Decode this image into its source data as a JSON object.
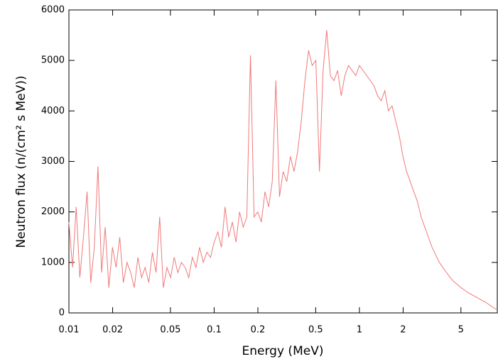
{
  "chart_data": {
    "type": "line",
    "xlabel": "Energy (MeV)",
    "ylabel": "Neutron flux (n/(cm² s MeV))",
    "xscale": "log",
    "xlim": [
      0.01,
      8.9
    ],
    "ylim": [
      0,
      6000
    ],
    "xticks": [
      0.01,
      0.02,
      0.05,
      0.1,
      0.2,
      0.5,
      1,
      2,
      5
    ],
    "yticks": [
      0,
      1000,
      2000,
      3000,
      4000,
      5000,
      6000
    ],
    "grid": false,
    "x": [
      0.01,
      0.01059,
      0.01122,
      0.01189,
      0.01259,
      0.01334,
      0.01413,
      0.01496,
      0.01585,
      0.01679,
      0.01778,
      0.01884,
      0.01995,
      0.02113,
      0.02239,
      0.02371,
      0.02512,
      0.02661,
      0.02818,
      0.02985,
      0.03162,
      0.0335,
      0.03548,
      0.03758,
      0.03981,
      0.04217,
      0.04467,
      0.04732,
      0.05012,
      0.05309,
      0.05623,
      0.05957,
      0.0631,
      0.06683,
      0.07079,
      0.07499,
      0.07943,
      0.08414,
      0.08913,
      0.09441,
      0.1,
      0.1059,
      0.1122,
      0.1189,
      0.1259,
      0.1334,
      0.1413,
      0.1496,
      0.1585,
      0.1679,
      0.1778,
      0.1884,
      0.1995,
      0.2113,
      0.2239,
      0.2371,
      0.2512,
      0.2661,
      0.2818,
      0.2985,
      0.3162,
      0.335,
      0.3548,
      0.3758,
      0.3981,
      0.4217,
      0.4467,
      0.4732,
      0.5012,
      0.5309,
      0.5623,
      0.5957,
      0.631,
      0.6683,
      0.7079,
      0.7499,
      0.7943,
      0.8414,
      0.8913,
      0.9441,
      1,
      1.059,
      1.122,
      1.189,
      1.259,
      1.334,
      1.413,
      1.496,
      1.585,
      1.679,
      1.778,
      1.884,
      1.995,
      2.113,
      2.239,
      2.371,
      2.512,
      2.661,
      2.818,
      2.985,
      3.162,
      3.35,
      3.548,
      3.758,
      3.981,
      4.217,
      4.467,
      4.732,
      5.012,
      5.309,
      5.623,
      5.957,
      6.31,
      6.683,
      7.079,
      7.499,
      7.943,
      8.414,
      8.913
    ],
    "series": [
      {
        "color": "#f07878",
        "values": [
          1800,
          900,
          2100,
          700,
          1500,
          2400,
          600,
          1300,
          2900,
          800,
          1700,
          500,
          1300,
          900,
          1500,
          600,
          1000,
          800,
          500,
          1100,
          700,
          900,
          600,
          1200,
          800,
          1900,
          500,
          900,
          700,
          1100,
          800,
          1000,
          900,
          700,
          1100,
          900,
          1300,
          1000,
          1200,
          1100,
          1400,
          1600,
          1300,
          2100,
          1500,
          1800,
          1400,
          2000,
          1700,
          1900,
          5100,
          1900,
          2000,
          1800,
          2400,
          2100,
          2600,
          4600,
          2300,
          2800,
          2600,
          3100,
          2800,
          3200,
          3800,
          4600,
          5200,
          4900,
          5000,
          2800,
          4800,
          5600,
          4700,
          4600,
          4800,
          4300,
          4700,
          4900,
          4800,
          4700,
          4900,
          4800,
          4700,
          4600,
          4500,
          4300,
          4200,
          4400,
          4000,
          4100,
          3800,
          3500,
          3100,
          2800,
          2600,
          2400,
          2200,
          1900,
          1700,
          1500,
          1300,
          1150,
          1000,
          900,
          800,
          700,
          620,
          560,
          500,
          450,
          400,
          360,
          320,
          280,
          240,
          200,
          150,
          100,
          60
        ]
      }
    ]
  }
}
